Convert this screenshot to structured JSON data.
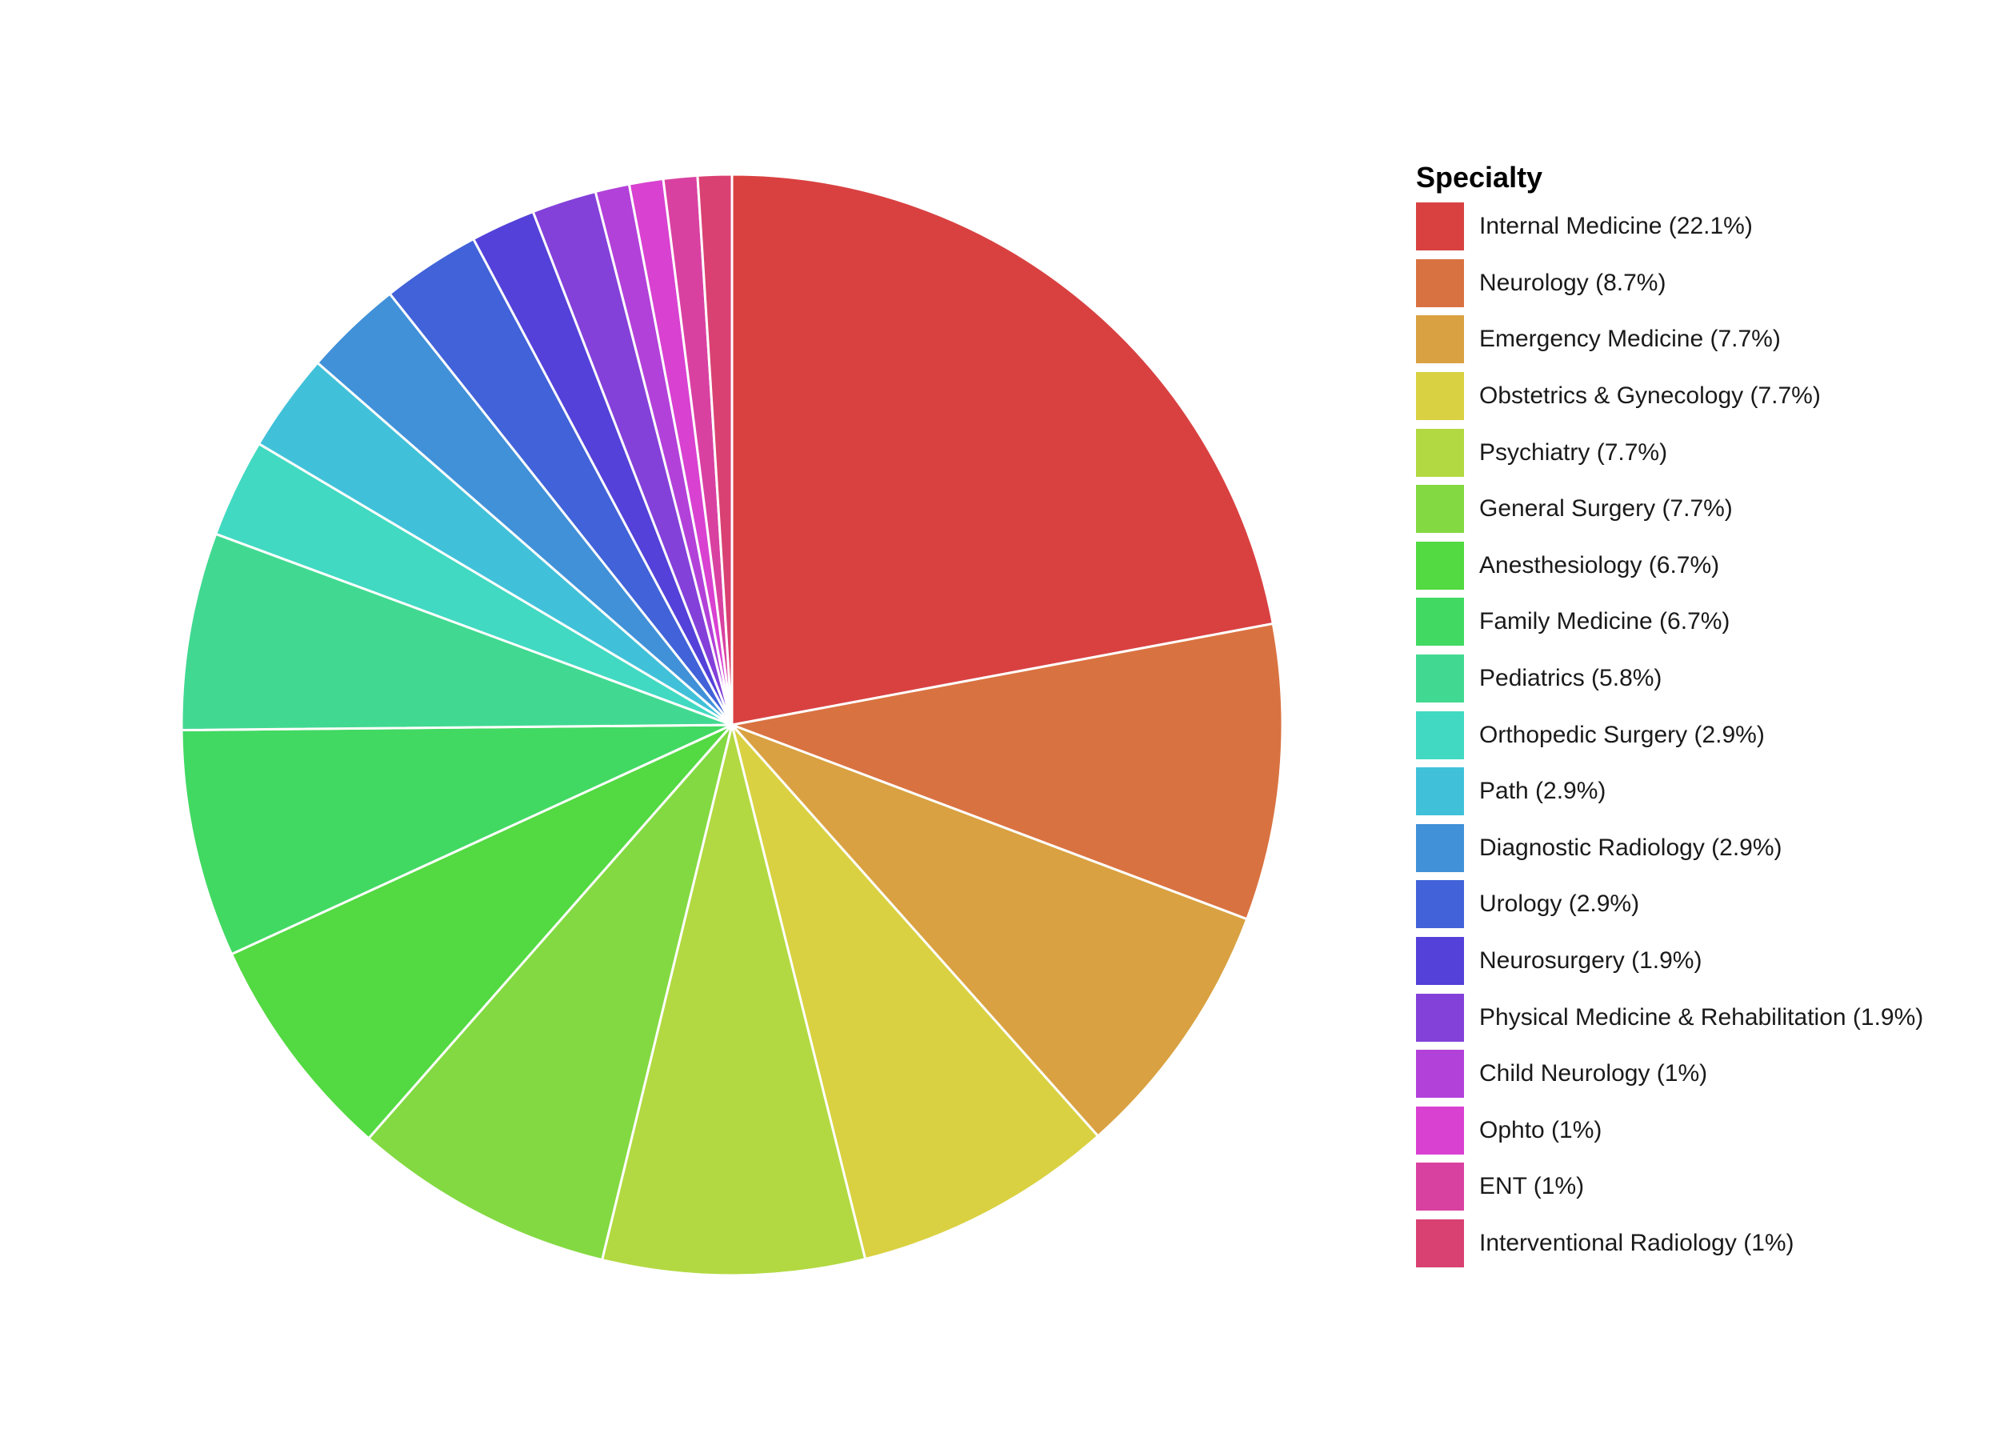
{
  "chart_data": {
    "type": "pie",
    "legend_title": "Specialty",
    "legend_position": "right",
    "slice_order": "clockwise from top",
    "slices": [
      {
        "label": "Internal Medicine (22.1%)",
        "name": "Internal Medicine",
        "value": 22.1,
        "color": "#D94141"
      },
      {
        "label": "Neurology (8.7%)",
        "name": "Neurology",
        "value": 8.7,
        "color": "#D97241"
      },
      {
        "label": "Emergency Medicine (7.7%)",
        "name": "Emergency Medicine",
        "value": 7.7,
        "color": "#D9A141"
      },
      {
        "label": "Obstetrics & Gynecology (7.7%)",
        "name": "Obstetrics & Gynecology",
        "value": 7.7,
        "color": "#D9D141"
      },
      {
        "label": "Psychiatry (7.7%)",
        "name": "Psychiatry",
        "value": 7.7,
        "color": "#B2D941"
      },
      {
        "label": "General Surgery (7.7%)",
        "name": "General Surgery",
        "value": 7.7,
        "color": "#83D941"
      },
      {
        "label": "Anesthesiology (6.7%)",
        "name": "Anesthesiology",
        "value": 6.7,
        "color": "#53D941"
      },
      {
        "label": "Family Medicine (6.7%)",
        "name": "Family Medicine",
        "value": 6.7,
        "color": "#41D962"
      },
      {
        "label": "Pediatrics (5.8%)",
        "name": "Pediatrics",
        "value": 5.8,
        "color": "#41D991"
      },
      {
        "label": "Orthopedic Surgery (2.9%)",
        "name": "Orthopedic Surgery",
        "value": 2.9,
        "color": "#41D9C1"
      },
      {
        "label": "Path (2.9%)",
        "name": "Path",
        "value": 2.9,
        "color": "#41C1D9"
      },
      {
        "label": "Diagnostic Radiology (2.9%)",
        "name": "Diagnostic Radiology",
        "value": 2.9,
        "color": "#4191D9"
      },
      {
        "label": "Urology (2.9%)",
        "name": "Urology",
        "value": 2.9,
        "color": "#4162D9"
      },
      {
        "label": "Neurosurgery (1.9%)",
        "name": "Neurosurgery",
        "value": 1.9,
        "color": "#5341D9"
      },
      {
        "label": "Physical Medicine & Rehabilitation (1.9%)",
        "name": "Physical Medicine & Rehabilitation",
        "value": 1.9,
        "color": "#8341D9"
      },
      {
        "label": "Child Neurology (1%)",
        "name": "Child Neurology",
        "value": 1.0,
        "color": "#B241D9"
      },
      {
        "label": "Ophto (1%)",
        "name": "Ophto",
        "value": 1.0,
        "color": "#D941D1"
      },
      {
        "label": "ENT (1%)",
        "name": "ENT",
        "value": 1.0,
        "color": "#D941A1"
      },
      {
        "label": "Interventional Radiology (1%)",
        "name": "Interventional Radiology",
        "value": 1.0,
        "color": "#D94172"
      }
    ]
  }
}
